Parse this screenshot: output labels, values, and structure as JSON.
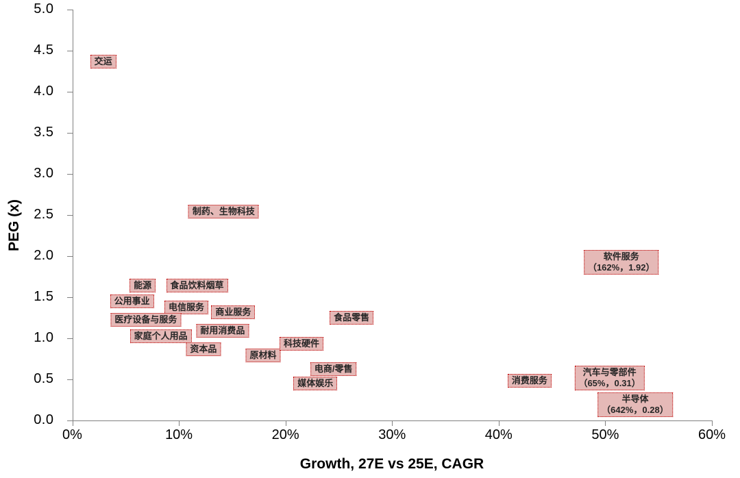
{
  "styles": {
    "label_fill": "#e5b9b7",
    "label_border": "#c00000",
    "label_text": "#262626",
    "axis_color": "#808080",
    "tick_text_color": "#000000"
  },
  "chart_data": {
    "type": "scatter",
    "title": "",
    "xlabel": "Growth, 27E vs 25E, CAGR",
    "ylabel": "PEG (x)",
    "xlim_pct": [
      0,
      60
    ],
    "ylim": [
      0,
      5
    ],
    "grid": false,
    "x_ticks": [
      "0%",
      "10%",
      "20%",
      "30%",
      "40%",
      "50%",
      "60%"
    ],
    "y_ticks": [
      "0.0",
      "0.5",
      "1.0",
      "1.5",
      "2.0",
      "2.5",
      "3.0",
      "3.5",
      "4.0",
      "4.5",
      "5.0"
    ],
    "points": [
      {
        "label": "交运",
        "x_pct": 2.9,
        "peg": 4.37,
        "label_at": [
          2.9,
          4.37
        ]
      },
      {
        "label": "制药、生物科技",
        "x_pct": 14.2,
        "peg": 2.54,
        "label_at": [
          14.2,
          2.54
        ]
      },
      {
        "label": "能源",
        "x_pct": 6.6,
        "peg": 1.64,
        "label_at": [
          6.6,
          1.64
        ]
      },
      {
        "label": "食品饮料烟草",
        "x_pct": 11.7,
        "peg": 1.64,
        "label_at": [
          11.7,
          1.64
        ]
      },
      {
        "label": "公用事业",
        "x_pct": 5.6,
        "peg": 1.45,
        "label_at": [
          5.6,
          1.45
        ]
      },
      {
        "label": "电信服务",
        "x_pct": 10.7,
        "peg": 1.37,
        "label_at": [
          10.7,
          1.37
        ]
      },
      {
        "label": "商业服务",
        "x_pct": 15.1,
        "peg": 1.31,
        "label_at": [
          15.1,
          1.31
        ]
      },
      {
        "label": "医疗设备与服务",
        "x_pct": 6.9,
        "peg": 1.22,
        "label_at": [
          6.9,
          1.22
        ]
      },
      {
        "label": "耐用消费品",
        "x_pct": 14.1,
        "peg": 1.09,
        "label_at": [
          14.1,
          1.09
        ]
      },
      {
        "label": "家庭个人用品",
        "x_pct": 8.3,
        "peg": 1.02,
        "label_at": [
          8.3,
          1.02
        ]
      },
      {
        "label": "资本品",
        "x_pct": 12.3,
        "peg": 0.86,
        "label_at": [
          12.3,
          0.86
        ]
      },
      {
        "label": "原材料",
        "x_pct": 17.9,
        "peg": 0.79,
        "label_at": [
          17.9,
          0.79
        ]
      },
      {
        "label": "科技硬件",
        "x_pct": 21.5,
        "peg": 0.93,
        "label_at": [
          21.5,
          0.93
        ]
      },
      {
        "label": "食品零售",
        "x_pct": 26.2,
        "peg": 1.25,
        "label_at": [
          26.2,
          1.25
        ]
      },
      {
        "label": "电商/零售",
        "x_pct": 24.5,
        "peg": 0.62,
        "label_at": [
          24.5,
          0.62
        ]
      },
      {
        "label": "媒体娱乐",
        "x_pct": 22.8,
        "peg": 0.45,
        "label_at": [
          22.8,
          0.45
        ]
      },
      {
        "label": "消费服务",
        "x_pct": 42.9,
        "peg": 0.48,
        "label_at": [
          42.9,
          0.48
        ]
      },
      {
        "label": "软件服务",
        "x_pct": 162,
        "peg": 1.92,
        "sublabel": "（162%，1.92）",
        "label_at": [
          51.5,
          1.92
        ]
      },
      {
        "label": "汽车与零部件",
        "x_pct": 65,
        "peg": 0.31,
        "sublabel": "（65%，0.31）",
        "label_at": [
          50.4,
          0.51
        ]
      },
      {
        "label": "半导体",
        "x_pct": 642,
        "peg": 0.28,
        "sublabel": "（642%，0.28）",
        "label_at": [
          52.8,
          0.19
        ]
      }
    ]
  }
}
